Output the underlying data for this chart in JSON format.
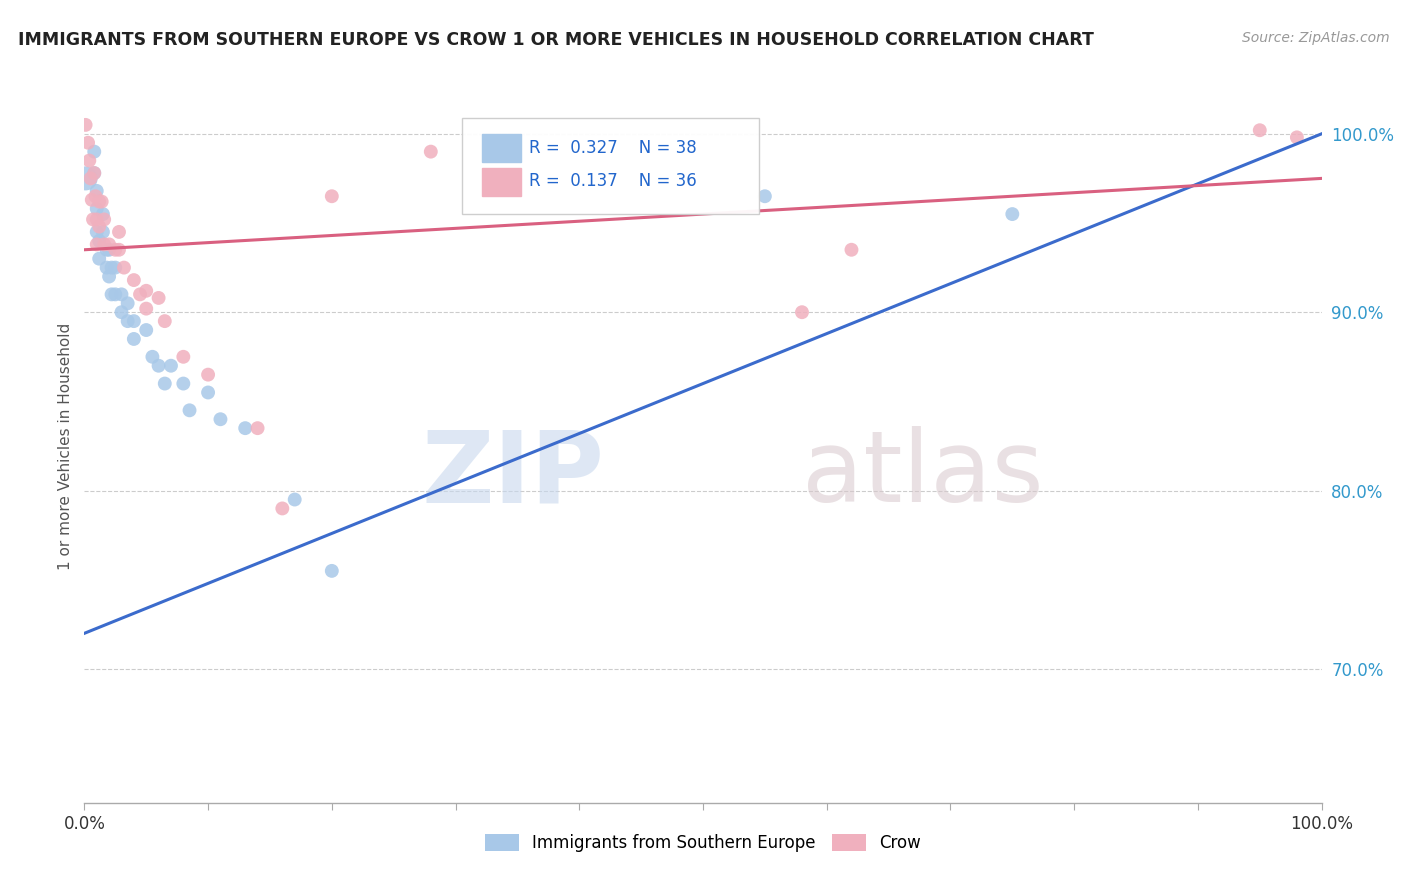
{
  "title": "IMMIGRANTS FROM SOUTHERN EUROPE VS CROW 1 OR MORE VEHICLES IN HOUSEHOLD CORRELATION CHART",
  "source": "Source: ZipAtlas.com",
  "ylabel": "1 or more Vehicles in Household",
  "xmin": 0.0,
  "xmax": 1.0,
  "ymin": 0.625,
  "ymax": 1.025,
  "yticks": [
    0.7,
    0.8,
    0.9,
    1.0
  ],
  "ytick_labels": [
    "70.0%",
    "80.0%",
    "90.0%",
    "100.0%"
  ],
  "legend_blue_label": "Immigrants from Southern Europe",
  "legend_pink_label": "Crow",
  "blue_R": 0.327,
  "blue_N": 38,
  "pink_R": 0.137,
  "pink_N": 36,
  "blue_color": "#a8c8e8",
  "pink_color": "#f0b0be",
  "blue_line_color": "#3b6bcc",
  "pink_line_color": "#d96080",
  "watermark_zip": "ZIP",
  "watermark_atlas": "atlas",
  "blue_line_x0": 0.0,
  "blue_line_y0": 0.72,
  "blue_line_x1": 1.0,
  "blue_line_y1": 1.0,
  "pink_line_x0": 0.0,
  "pink_line_y0": 0.935,
  "pink_line_x1": 1.0,
  "pink_line_y1": 0.975,
  "blue_points": [
    [
      0.001,
      0.975
    ],
    [
      0.008,
      0.99
    ],
    [
      0.008,
      0.978
    ],
    [
      0.01,
      0.968
    ],
    [
      0.01,
      0.958
    ],
    [
      0.01,
      0.945
    ],
    [
      0.012,
      0.93
    ],
    [
      0.012,
      0.94
    ],
    [
      0.015,
      0.955
    ],
    [
      0.015,
      0.945
    ],
    [
      0.018,
      0.935
    ],
    [
      0.018,
      0.925
    ],
    [
      0.02,
      0.935
    ],
    [
      0.02,
      0.92
    ],
    [
      0.022,
      0.925
    ],
    [
      0.022,
      0.91
    ],
    [
      0.025,
      0.925
    ],
    [
      0.025,
      0.91
    ],
    [
      0.03,
      0.91
    ],
    [
      0.03,
      0.9
    ],
    [
      0.035,
      0.905
    ],
    [
      0.035,
      0.895
    ],
    [
      0.04,
      0.895
    ],
    [
      0.04,
      0.885
    ],
    [
      0.05,
      0.89
    ],
    [
      0.055,
      0.875
    ],
    [
      0.06,
      0.87
    ],
    [
      0.065,
      0.86
    ],
    [
      0.07,
      0.87
    ],
    [
      0.08,
      0.86
    ],
    [
      0.085,
      0.845
    ],
    [
      0.1,
      0.855
    ],
    [
      0.11,
      0.84
    ],
    [
      0.13,
      0.835
    ],
    [
      0.17,
      0.795
    ],
    [
      0.2,
      0.755
    ],
    [
      0.55,
      0.965
    ],
    [
      0.75,
      0.955
    ]
  ],
  "pink_points": [
    [
      0.001,
      1.005
    ],
    [
      0.003,
      0.995
    ],
    [
      0.004,
      0.985
    ],
    [
      0.005,
      0.975
    ],
    [
      0.006,
      0.963
    ],
    [
      0.007,
      0.952
    ],
    [
      0.008,
      0.978
    ],
    [
      0.009,
      0.965
    ],
    [
      0.01,
      0.952
    ],
    [
      0.01,
      0.938
    ],
    [
      0.012,
      0.962
    ],
    [
      0.012,
      0.948
    ],
    [
      0.014,
      0.962
    ],
    [
      0.016,
      0.952
    ],
    [
      0.016,
      0.938
    ],
    [
      0.02,
      0.938
    ],
    [
      0.025,
      0.935
    ],
    [
      0.028,
      0.945
    ],
    [
      0.028,
      0.935
    ],
    [
      0.032,
      0.925
    ],
    [
      0.04,
      0.918
    ],
    [
      0.045,
      0.91
    ],
    [
      0.05,
      0.912
    ],
    [
      0.05,
      0.902
    ],
    [
      0.06,
      0.908
    ],
    [
      0.065,
      0.895
    ],
    [
      0.08,
      0.875
    ],
    [
      0.1,
      0.865
    ],
    [
      0.14,
      0.835
    ],
    [
      0.16,
      0.79
    ],
    [
      0.2,
      0.965
    ],
    [
      0.28,
      0.99
    ],
    [
      0.58,
      0.9
    ],
    [
      0.62,
      0.935
    ],
    [
      0.95,
      1.002
    ],
    [
      0.98,
      0.998
    ]
  ],
  "blue_large_point": [
    0.001,
    0.975
  ],
  "blue_large_size": 300
}
